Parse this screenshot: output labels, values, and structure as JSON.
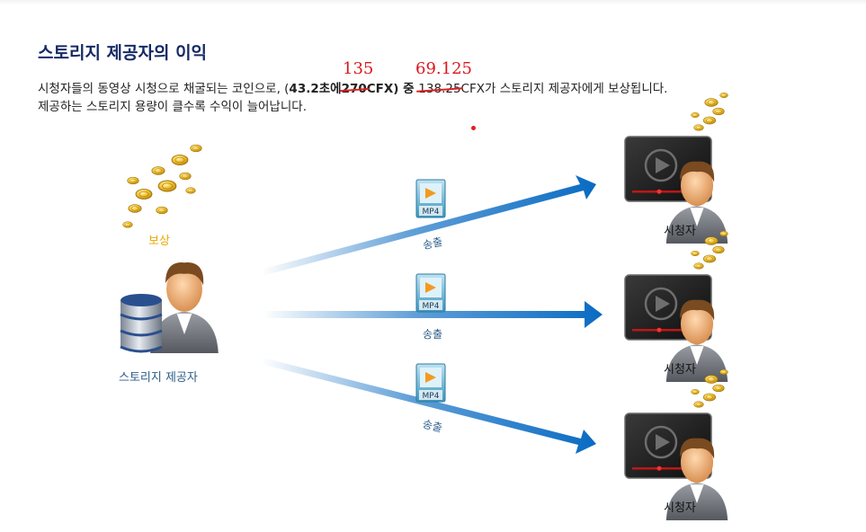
{
  "header": {
    "title": "스토리지 제공자의 이익"
  },
  "description": {
    "line1_pre": "시청자들의 동영상 시청으로 채굴되는 코인으로, (",
    "line1_bold": "43.2초에",
    "line1_strike1": "270",
    "line1_mid": "CFX) 중 ",
    "line1_strike2": "138.25",
    "line1_post": "CFX가 스토리지 제공자에게 보상됩니다.",
    "line2": "제공하는 스토리지 용량이 클수록 수익이 늘어납니다.",
    "handwritten_1": "135",
    "handwritten_2": "69.125"
  },
  "diagram": {
    "reward_label": "보상",
    "provider_label": "스토리지 제공자",
    "file_badge": "MP4",
    "stream_label": "송출",
    "viewer_label": "시청자",
    "colors": {
      "arrow": "#0a6bc2",
      "coin": "#e8b21c",
      "title": "#152a66",
      "annotation": "#d8181e"
    }
  }
}
